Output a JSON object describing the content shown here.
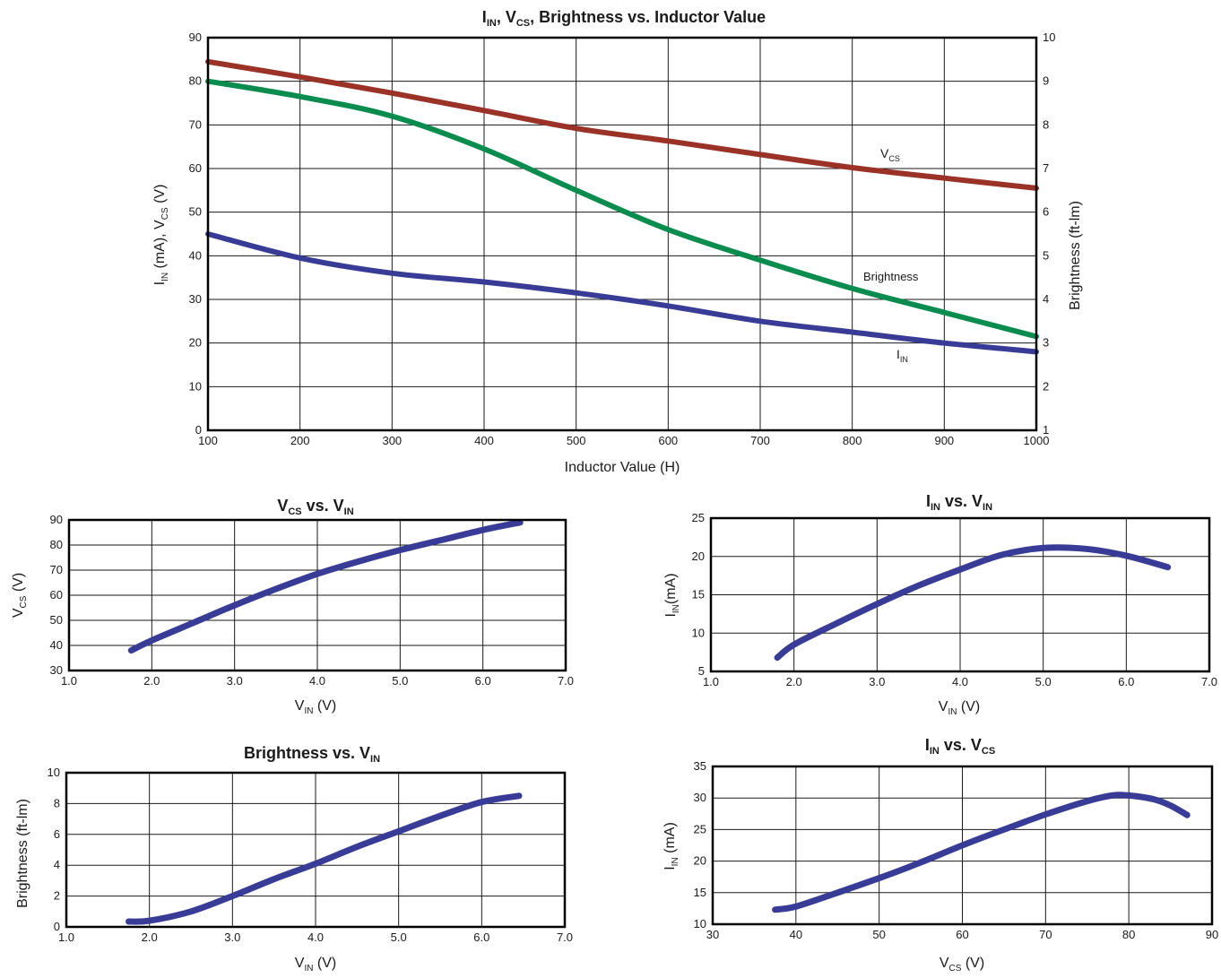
{
  "colors": {
    "vcs": "#9b3227",
    "brightness": "#0b8c4f",
    "iin": "#383c96",
    "small": "#383c96"
  },
  "chart_data": [
    {
      "id": "main",
      "type": "line",
      "title": {
        "main": "I",
        "sub1": "IN",
        "mid": ", V",
        "sub2": "CS",
        "rest": ", Brightness vs. Inductor Value"
      },
      "xlabel": "Inductor Value (H)",
      "ylabel_left": {
        "a": "I",
        "a_sub": "IN",
        "b": " (mA), V",
        "b_sub": "CS",
        "c": " (V)"
      },
      "ylabel_right": "Brightness (ft-lm)",
      "xlim": [
        100,
        1000
      ],
      "ylim_left": [
        0,
        90
      ],
      "ylim_right": [
        1,
        10
      ],
      "xticks": [
        "100",
        "200",
        "300",
        "400",
        "500",
        "600",
        "700",
        "800",
        "900",
        "1000"
      ],
      "yticks_left": [
        "0",
        "10",
        "20",
        "30",
        "40",
        "50",
        "60",
        "70",
        "80",
        "90"
      ],
      "yticks_right": [
        "1",
        "2",
        "3",
        "4",
        "5",
        "6",
        "7",
        "8",
        "9",
        "10"
      ],
      "grid": true,
      "series": [
        {
          "name": "VCS",
          "label": {
            "main": "V",
            "sub": "CS"
          },
          "axis": "left",
          "x": [
            100,
            200,
            300,
            400,
            500,
            600,
            700,
            800,
            900,
            1000
          ],
          "y": [
            84.5,
            81,
            77.3,
            73.3,
            69.2,
            66.3,
            63.2,
            60.2,
            57.8,
            55.5
          ]
        },
        {
          "name": "Brightness",
          "label": {
            "main": "Brightness",
            "sub": ""
          },
          "axis": "right",
          "x": [
            100,
            200,
            300,
            400,
            500,
            600,
            700,
            800,
            900,
            1000
          ],
          "y": [
            9.0,
            8.65,
            8.2,
            7.45,
            6.5,
            5.6,
            4.9,
            4.25,
            3.7,
            3.15
          ]
        },
        {
          "name": "IIN",
          "label": {
            "main": "I",
            "sub": "IN"
          },
          "axis": "left",
          "x": [
            100,
            200,
            300,
            400,
            500,
            600,
            700,
            800,
            900,
            1000
          ],
          "y": [
            45,
            39.5,
            36,
            34,
            31.5,
            28.5,
            25,
            22.5,
            20,
            18
          ]
        }
      ]
    },
    {
      "id": "vcs_vin",
      "type": "line",
      "title": {
        "a": "V",
        "a_sub": "CS",
        "b": " vs. V",
        "b_sub": "IN"
      },
      "xlabel": {
        "a": "V",
        "a_sub": "IN",
        "b": " (V)"
      },
      "ylabel": {
        "a": "V",
        "a_sub": "CS",
        "b": " (V)"
      },
      "xlim": [
        1,
        7
      ],
      "ylim": [
        30,
        90
      ],
      "xticks": [
        "1.0",
        "2.0",
        "3.0",
        "4.0",
        "5.0",
        "6.0",
        "7.0"
      ],
      "yticks": [
        "30",
        "40",
        "50",
        "60",
        "70",
        "80",
        "90"
      ],
      "grid": true,
      "series": [
        {
          "x": [
            1.75,
            2.0,
            2.5,
            3.0,
            3.5,
            4.0,
            4.5,
            5.0,
            5.5,
            6.0,
            6.45
          ],
          "y": [
            38,
            42,
            49,
            56,
            62.5,
            68.5,
            73.5,
            78,
            82,
            86,
            89
          ]
        }
      ]
    },
    {
      "id": "iin_vin",
      "type": "line",
      "title": {
        "a": "I",
        "a_sub": "IN",
        "b": " vs. V",
        "b_sub": "IN"
      },
      "xlabel": {
        "a": "V",
        "a_sub": "IN",
        "b": " (V)"
      },
      "ylabel": {
        "a": "I",
        "a_sub": "IN",
        "b": "(mA)"
      },
      "xlim": [
        1,
        7
      ],
      "ylim": [
        5,
        25
      ],
      "xticks": [
        "1.0",
        "2.0",
        "3.0",
        "4.0",
        "5.0",
        "6.0",
        "7.0"
      ],
      "yticks": [
        "5",
        "10",
        "15",
        "20",
        "25"
      ],
      "grid": true,
      "series": [
        {
          "x": [
            1.8,
            2.0,
            2.5,
            3.0,
            3.5,
            4.0,
            4.5,
            5.0,
            5.5,
            6.0,
            6.5
          ],
          "y": [
            6.8,
            8.5,
            11.2,
            13.8,
            16.2,
            18.3,
            20.2,
            21.1,
            21.0,
            20.1,
            18.6
          ]
        }
      ]
    },
    {
      "id": "bright_vin",
      "type": "line",
      "title": {
        "a": "Brightness vs. V",
        "a_sub": "IN",
        "b": "",
        "b_sub": ""
      },
      "xlabel": {
        "a": "V",
        "a_sub": "IN",
        "b": " (V)"
      },
      "ylabel": {
        "a": "Brightness (ft-lm)",
        "a_sub": "",
        "b": ""
      },
      "xlim": [
        1,
        7
      ],
      "ylim": [
        0,
        10
      ],
      "xticks": [
        "1.0",
        "2.0",
        "3.0",
        "4.0",
        "5.0",
        "6.0",
        "7.0"
      ],
      "yticks": [
        "0",
        "2",
        "4",
        "6",
        "8",
        "10"
      ],
      "grid": true,
      "series": [
        {
          "x": [
            1.75,
            2.0,
            2.5,
            3.0,
            3.5,
            4.0,
            4.5,
            5.0,
            5.5,
            6.0,
            6.45
          ],
          "y": [
            0.35,
            0.4,
            1.0,
            2.0,
            3.1,
            4.1,
            5.2,
            6.2,
            7.2,
            8.1,
            8.5
          ]
        }
      ]
    },
    {
      "id": "iin_vcs",
      "type": "line",
      "title": {
        "a": "I",
        "a_sub": "IN",
        "b": " vs. V",
        "b_sub": "CS"
      },
      "xlabel": {
        "a": "V",
        "a_sub": "CS",
        "b": " (V)"
      },
      "ylabel": {
        "a": "I",
        "a_sub": "IN",
        "b": " (mA)"
      },
      "xlim": [
        30,
        90
      ],
      "ylim": [
        10,
        35
      ],
      "xticks": [
        "30",
        "40",
        "50",
        "60",
        "70",
        "80",
        "90"
      ],
      "yticks": [
        "10",
        "15",
        "20",
        "25",
        "30",
        "35"
      ],
      "grid": true,
      "series": [
        {
          "x": [
            37.5,
            40,
            45,
            50,
            55,
            60,
            65,
            70,
            75,
            78,
            80,
            83,
            85,
            87
          ],
          "y": [
            12.3,
            12.8,
            15.0,
            17.3,
            19.8,
            22.5,
            25.0,
            27.4,
            29.5,
            30.4,
            30.4,
            29.8,
            28.8,
            27.3
          ]
        }
      ]
    }
  ]
}
